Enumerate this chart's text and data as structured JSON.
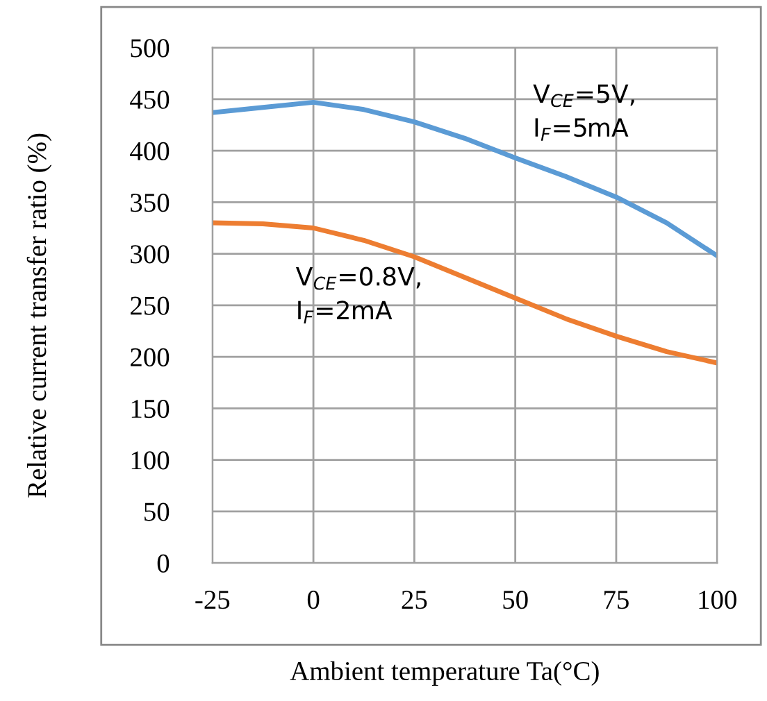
{
  "chart_data": {
    "type": "line",
    "xlabel": "Ambient temperature Ta(°C)",
    "ylabel": "Relative current transfer ratio (%)",
    "xlim": [
      -25,
      100
    ],
    "xticks": [
      -25,
      0,
      25,
      50,
      75,
      100
    ],
    "ylim": [
      0,
      500
    ],
    "yticks": [
      0,
      50,
      100,
      150,
      200,
      250,
      300,
      350,
      400,
      450,
      500
    ],
    "grid": true,
    "legend": false,
    "marker": "none",
    "line_style": "solid",
    "x": [
      -25,
      -12.5,
      0,
      12.5,
      25,
      37.5,
      50,
      62.5,
      75,
      87.5,
      100
    ],
    "series": [
      {
        "name": "V$_{CE}$=5V,\nI$_{F}$=5mA",
        "color": "#5b9bd5",
        "values": [
          437,
          442,
          447,
          440,
          428,
          412,
          393,
          375,
          355,
          330,
          298
        ]
      },
      {
        "name": "V$_{CE}$=0.8V,\nI$_{F}$=2mA",
        "color": "#ed7d31",
        "values": [
          330,
          329,
          325,
          313,
          297,
          277,
          257,
          237,
          220,
          205,
          194
        ]
      }
    ]
  }
}
